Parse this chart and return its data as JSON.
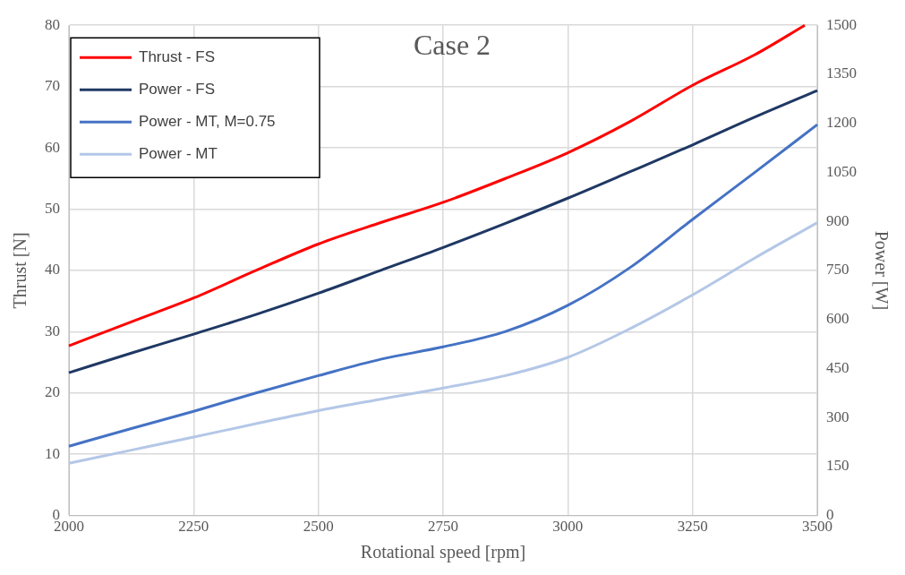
{
  "chart_data": {
    "type": "line",
    "title": "Case 2",
    "xlabel": "Rotational speed [rpm]",
    "ylabel": "Thrust [N]",
    "y2label": "Power [W]",
    "xlim": [
      2000,
      3500
    ],
    "xticks": [
      2000,
      2250,
      2500,
      2750,
      3000,
      3250,
      3500
    ],
    "ylim": [
      0,
      80
    ],
    "yticks": [
      0,
      10,
      20,
      30,
      40,
      50,
      60,
      70,
      80
    ],
    "y2lim": [
      0,
      1500
    ],
    "y2ticks": [
      0,
      150,
      300,
      450,
      600,
      750,
      900,
      1050,
      1200,
      1350,
      1500
    ],
    "grid": true,
    "legend": "top left",
    "marker": "none",
    "line_style": "solid",
    "series": [
      {
        "name": "Thrust - FS",
        "color": "#ff0000",
        "x": [
          2000,
          2125,
          2250,
          2375,
          2500,
          2625,
          2750,
          2875,
          3000,
          3125,
          3250,
          3375,
          3475
        ],
        "values": [
          27.7,
          31.6,
          35.5,
          40,
          44.3,
          47.8,
          51.1,
          55,
          59.2,
          64.3,
          70.2,
          75.2,
          80
        ]
      },
      {
        "name": "Power - FS",
        "color": "#1f3864",
        "axis": "y2",
        "x": [
          2000,
          2125,
          2250,
          2375,
          2500,
          2625,
          2750,
          2875,
          3000,
          3125,
          3250,
          3375,
          3500
        ],
        "values": [
          437,
          497,
          555,
          615,
          680,
          750,
          820,
          894,
          971,
          1052,
          1134,
          1219,
          1300
        ]
      },
      {
        "name": "Power - MT, M=0.75",
        "color": "#4472c4",
        "axis": "y2",
        "x": [
          2000,
          2125,
          2250,
          2375,
          2500,
          2625,
          2750,
          2875,
          3000,
          3125,
          3250,
          3375,
          3500
        ],
        "values": [
          212,
          266,
          319,
          375,
          428,
          478,
          516,
          563,
          643,
          759,
          906,
          1050,
          1196
        ]
      },
      {
        "name": "Power - MT",
        "color": "#b4c7e7",
        "axis": "y2",
        "x": [
          2000,
          2125,
          2250,
          2375,
          2500,
          2625,
          2750,
          2875,
          3000,
          3125,
          3250,
          3375,
          3500
        ],
        "values": [
          160,
          200,
          240,
          281,
          321,
          356,
          390,
          428,
          484,
          572,
          675,
          788,
          896
        ]
      }
    ]
  }
}
